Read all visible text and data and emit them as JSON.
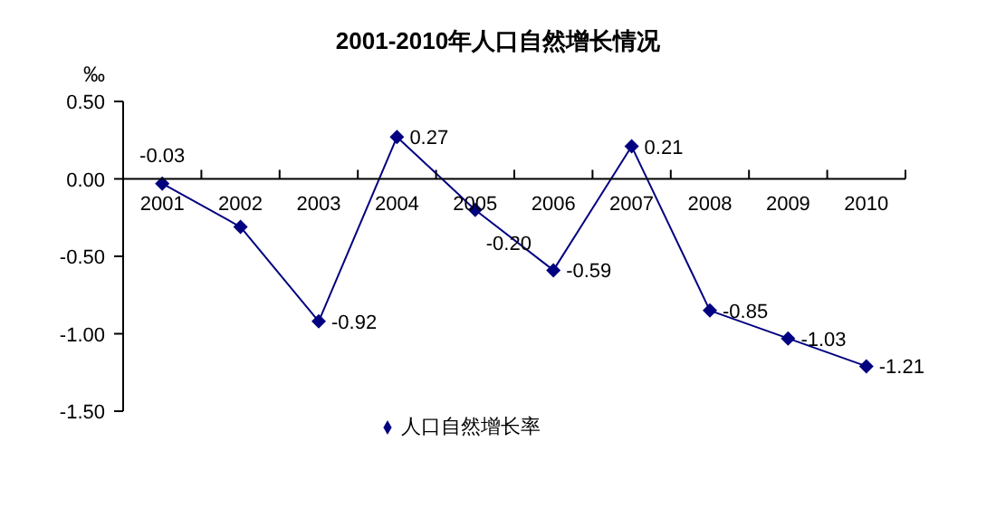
{
  "chart_data": {
    "type": "line",
    "title": "2001-2010年人口自然增长情况",
    "ylabel": "‰",
    "categories": [
      "2001",
      "2002",
      "2003",
      "2004",
      "2005",
      "2006",
      "2007",
      "2008",
      "2009",
      "2010"
    ],
    "series": [
      {
        "name": "人口自然增长率",
        "color": "#000080",
        "values": [
          -0.03,
          -0.31,
          -0.92,
          0.27,
          -0.2,
          -0.59,
          0.21,
          -0.85,
          -1.03,
          -1.21
        ],
        "value_labels": [
          "-0.03",
          null,
          "-0.92",
          "0.27",
          "-0.20",
          "-0.59",
          "0.21",
          "-0.85",
          "-1.03",
          "-1.21"
        ]
      }
    ],
    "ylim": [
      -1.5,
      0.5
    ],
    "yticks": [
      {
        "value": 0.5,
        "label": "0.50"
      },
      {
        "value": 0,
        "label": "0.00"
      },
      {
        "value": -0.5,
        "label": "-0.50"
      },
      {
        "value": -1,
        "label": "-1.00"
      },
      {
        "value": -1.5,
        "label": "-1.50"
      }
    ],
    "grid": false,
    "legend": "bottom",
    "marker": "diamond",
    "line_style": "solid"
  }
}
